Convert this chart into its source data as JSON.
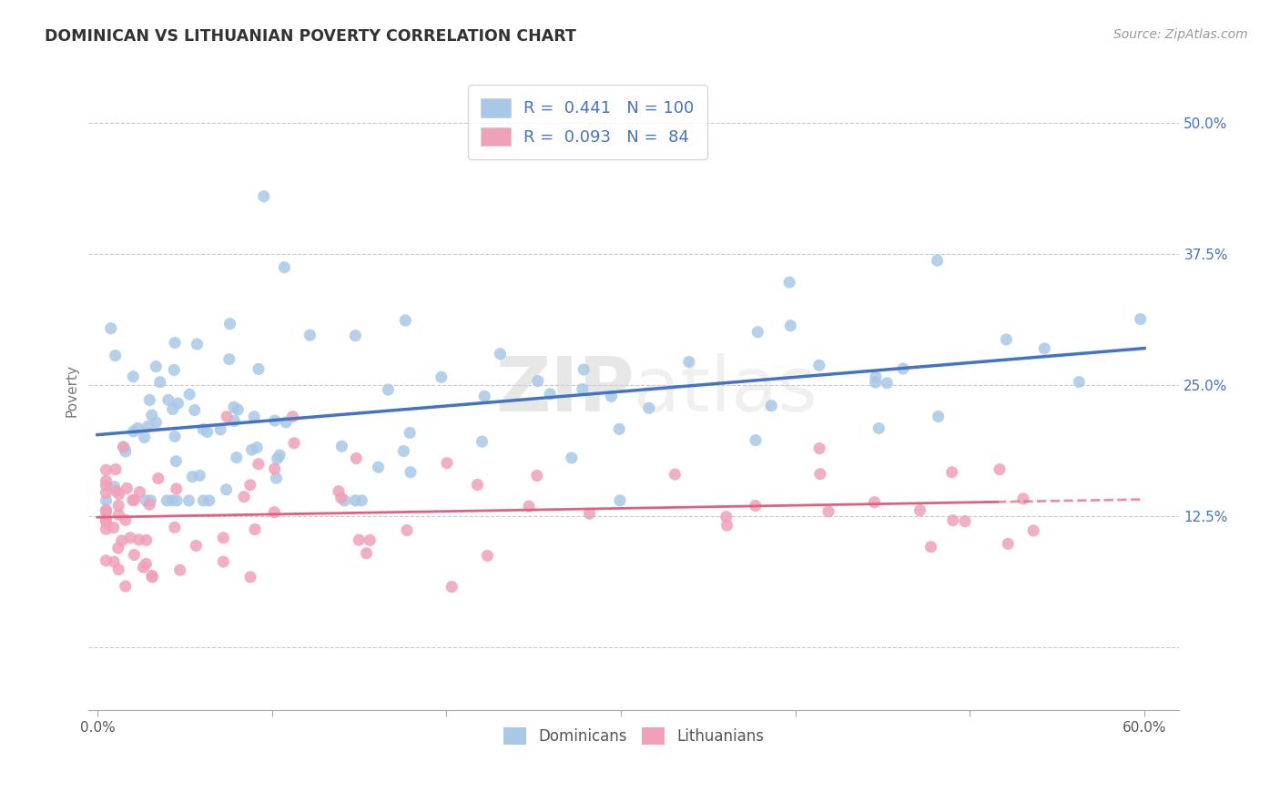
{
  "title": "DOMINICAN VS LITHUANIAN POVERTY CORRELATION CHART",
  "source": "Source: ZipAtlas.com",
  "ylabel": "Poverty",
  "xlim": [
    -0.005,
    0.62
  ],
  "ylim": [
    -0.06,
    0.55
  ],
  "dominican_R": 0.441,
  "dominican_N": 100,
  "lithuanian_R": 0.093,
  "lithuanian_N": 84,
  "dominican_color": "#a8c8e8",
  "lithuanian_color": "#f0a0b8",
  "dominican_line_color": "#4472c4",
  "lithuanian_line_color": "#e06080",
  "background_color": "#ffffff",
  "grid_color": "#c8c8c8",
  "text_color": "#4472c4",
  "label_color": "#666666",
  "watermark": "ZIPAtlas",
  "ytick_vals": [
    0.0,
    0.125,
    0.25,
    0.375,
    0.5
  ],
  "ytick_labels": [
    "",
    "12.5%",
    "25.0%",
    "37.5%",
    "50.0%"
  ],
  "xtick_vals": [
    0.0,
    0.1,
    0.2,
    0.3,
    0.4,
    0.5,
    0.6
  ],
  "xtick_labels": [
    "0.0%",
    "",
    "",
    "",
    "",
    "",
    "60.0%"
  ]
}
